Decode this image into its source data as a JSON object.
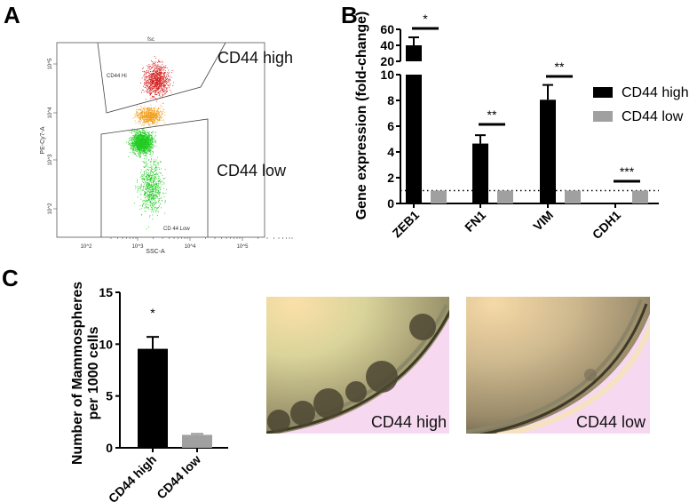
{
  "panels": {
    "a": "A",
    "b": "B",
    "c": "C"
  },
  "chart_data": [
    {
      "type": "scatter",
      "panel": "A",
      "title": "fsc",
      "xlabel": "SSC-A",
      "ylabel": "PE-Cy7-A",
      "xscale": "log",
      "yscale": "log",
      "xticks": [
        "10^2",
        "10^3",
        "10^4",
        "10^5"
      ],
      "yticks": [
        "10^2",
        "10^3",
        "10^4",
        "10^5"
      ],
      "gates": [
        {
          "name": "CD44 Hi",
          "annotation": "CD44 high",
          "color": "#d42020"
        },
        {
          "name": "CD 44 Low",
          "annotation": "CD44 low",
          "color": "#22cc22"
        }
      ],
      "intermediate_color": "#f0a020"
    },
    {
      "type": "bar",
      "panel": "B",
      "ylabel": "Gene expression (fold-change)",
      "categories": [
        "ZEB1",
        "FN1",
        "VIM",
        "CDH1"
      ],
      "series": [
        {
          "name": "CD44 high",
          "color": "#000000",
          "values": [
            40,
            4.65,
            8.05,
            0
          ],
          "error": [
            10,
            0.65,
            1.15,
            0
          ]
        },
        {
          "name": "CD44 low",
          "color": "#a0a0a0",
          "values": [
            1,
            1,
            1,
            1
          ],
          "error": [
            0,
            0,
            0,
            0
          ]
        }
      ],
      "significance": [
        "*",
        "**",
        "**",
        "***"
      ],
      "y_axis_break": {
        "lower": [
          0,
          10
        ],
        "upper": [
          20,
          60
        ]
      },
      "yticks_lower": [
        "0",
        "2",
        "4",
        "6",
        "8",
        "10"
      ],
      "yticks_upper": [
        "20",
        "40",
        "60"
      ],
      "reference_line": 1,
      "legend": "right"
    },
    {
      "type": "bar",
      "panel": "C",
      "ylabel": [
        "Number of Mammospheres",
        "per 1000 cells"
      ],
      "categories": [
        "CD44 high",
        "CD44 low"
      ],
      "values": [
        9.55,
        1.25
      ],
      "error": [
        1.15,
        0.1
      ],
      "colors": [
        "#000000",
        "#a0a0a0"
      ],
      "significance": [
        "*",
        ""
      ],
      "ylim": [
        0,
        15
      ],
      "yticks": [
        "0",
        "5",
        "10",
        "15"
      ]
    }
  ],
  "images": [
    {
      "label": "CD44 high"
    },
    {
      "label": "CD44 low"
    }
  ]
}
